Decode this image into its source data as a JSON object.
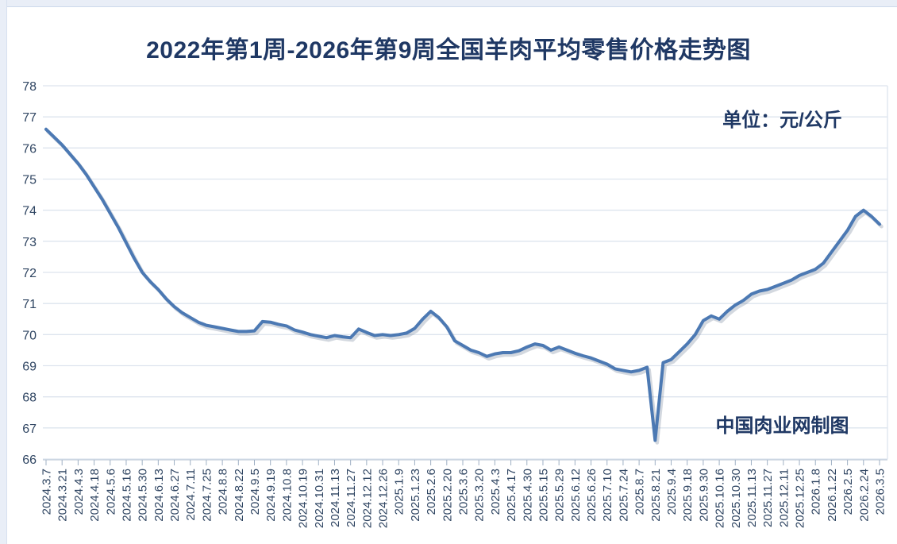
{
  "chart": {
    "title": "2022年第1周-2026年第9周全国羊肉平均零售价格走势图",
    "unit_label": "单位：元/公斤",
    "watermark": "中国肉业网制图"
  },
  "chart_data": {
    "type": "line",
    "title": "2022年第1周-2026年第9周全国羊肉平均零售价格走势图",
    "unit": "元/公斤",
    "ylabel": "",
    "xlabel": "",
    "ylim": [
      66,
      78
    ],
    "y_ticks": [
      66,
      67,
      68,
      69,
      70,
      71,
      72,
      73,
      74,
      75,
      76,
      77,
      78
    ],
    "grid": true,
    "legend_position": "none",
    "line_color": "#4c79b3",
    "x_tick_labels": [
      "2024.3.7",
      "2024.3.21",
      "2024.4.3",
      "2024.4.18",
      "2024.5.6",
      "2024.5.16",
      "2024.5.30",
      "2024.6.13",
      "2024.6.27",
      "2024.7.11",
      "2024.7.25",
      "2024.8.8",
      "2024.8.22",
      "2024.9.5",
      "2024.9.19",
      "2024.10.8",
      "2024.10.19",
      "2024.10.31",
      "2024.11.13",
      "2024.11.27",
      "2024.12.12",
      "2024.12.26",
      "2025.1.9",
      "2025.1.23",
      "2025.2.6",
      "2025.2.20",
      "2025.3.6",
      "2025.3.20",
      "2025.4.3",
      "2025.4.17",
      "2025.4.30",
      "2025.5.15",
      "2025.5.29",
      "2025.6.12",
      "2025.6.26",
      "2025.7.10",
      "2025.7.24",
      "2025.8.7",
      "2025.8.21",
      "2025.9.4",
      "2025.9.18",
      "2025.9.30",
      "2025.10.16",
      "2025.10.30",
      "2025.11.13",
      "2025.11.27",
      "2025.12.11",
      "2025.12.25",
      "2026.1.8",
      "2026.1.22",
      "2026.2.5",
      "2026.2.24",
      "2026.3.5"
    ],
    "x_tick_every_n_points": 2,
    "series": [
      {
        "name": "全国羊肉平均零售价格(元/公斤)",
        "values": [
          76.6,
          76.35,
          76.1,
          75.8,
          75.5,
          75.15,
          74.75,
          74.35,
          73.9,
          73.45,
          72.95,
          72.45,
          72.0,
          71.7,
          71.45,
          71.15,
          70.9,
          70.7,
          70.55,
          70.4,
          70.3,
          70.25,
          70.2,
          70.15,
          70.1,
          70.1,
          70.12,
          70.42,
          70.4,
          70.33,
          70.28,
          70.15,
          70.08,
          70.0,
          69.95,
          69.9,
          69.97,
          69.93,
          69.9,
          70.18,
          70.07,
          69.97,
          70.0,
          69.97,
          70.0,
          70.05,
          70.2,
          70.5,
          70.75,
          70.55,
          70.25,
          69.8,
          69.65,
          69.5,
          69.42,
          69.3,
          69.38,
          69.42,
          69.42,
          69.48,
          69.6,
          69.7,
          69.65,
          69.5,
          69.6,
          69.5,
          69.4,
          69.32,
          69.25,
          69.15,
          69.05,
          68.9,
          68.85,
          68.8,
          68.85,
          68.95,
          66.6,
          69.1,
          69.2,
          69.45,
          69.7,
          70.0,
          70.45,
          70.6,
          70.5,
          70.75,
          70.95,
          71.1,
          71.3,
          71.4,
          71.45,
          71.55,
          71.65,
          71.75,
          71.9,
          72.0,
          72.1,
          72.3,
          72.65,
          73.0,
          73.35,
          73.8,
          74.0,
          73.8,
          73.55
        ]
      }
    ]
  }
}
